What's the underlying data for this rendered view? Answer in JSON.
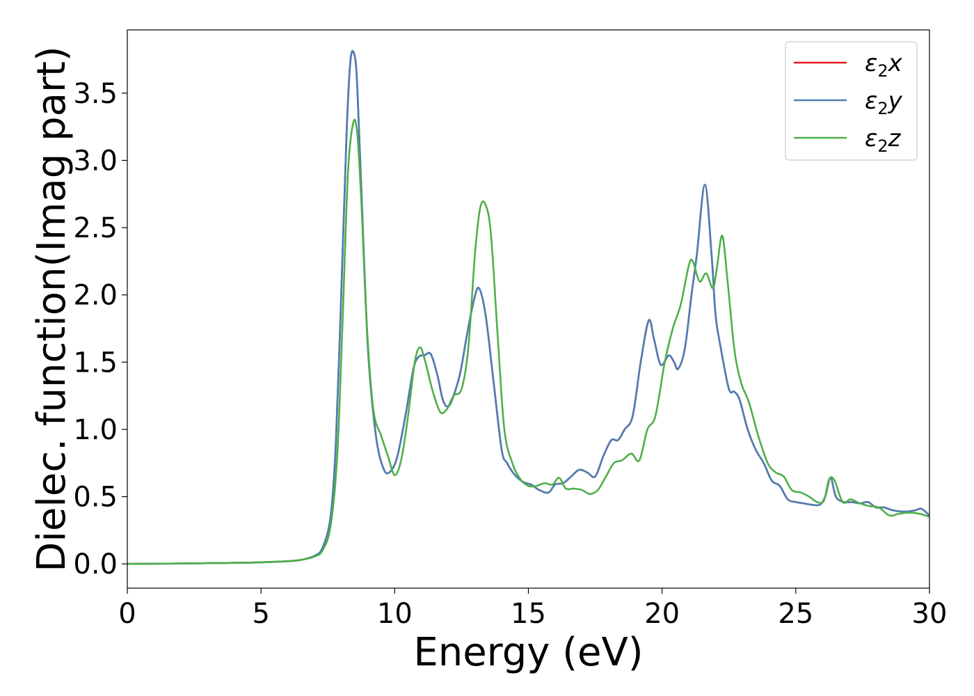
{
  "chart_data": {
    "type": "line",
    "title": "",
    "xlabel": "Energy (eV)",
    "ylabel": "Dielec. function(Imag part)",
    "xlim": [
      0,
      30
    ],
    "ylim": [
      -0.18,
      3.97
    ],
    "xticks": [
      0,
      5,
      10,
      15,
      20,
      25,
      30
    ],
    "xtick_labels": [
      "0",
      "5",
      "10",
      "15",
      "20",
      "25",
      "30"
    ],
    "yticks": [
      0.0,
      0.5,
      1.0,
      1.5,
      2.0,
      2.5,
      3.0,
      3.5
    ],
    "ytick_labels": [
      "0.0",
      "0.5",
      "1.0",
      "1.5",
      "2.0",
      "2.5",
      "3.0",
      "3.5"
    ],
    "grid": false,
    "legend_position": "top-right",
    "series": [
      {
        "name": "ε2x",
        "legend_symbol": "ε",
        "legend_sub": "2",
        "legend_var": "x",
        "color": "#e41a1c",
        "x": [
          0,
          2,
          4,
          5,
          6,
          6.5,
          7,
          7.3,
          7.6,
          7.8,
          8.0,
          8.2,
          8.35,
          8.5,
          8.6,
          8.75,
          9.0,
          9.3,
          9.6,
          9.85,
          10.1,
          10.4,
          10.7,
          10.9,
          11.1,
          11.35,
          11.6,
          11.8,
          12.0,
          12.2,
          12.45,
          12.7,
          12.95,
          13.15,
          13.4,
          13.7,
          14.0,
          14.2,
          14.5,
          14.8,
          15.1,
          15.4,
          15.75,
          16.0,
          16.3,
          16.6,
          16.9,
          17.2,
          17.5,
          17.8,
          18.1,
          18.35,
          18.6,
          18.9,
          19.2,
          19.5,
          19.7,
          19.95,
          20.25,
          20.45,
          20.6,
          20.85,
          21.1,
          21.3,
          21.6,
          21.85,
          22.0,
          22.2,
          22.5,
          22.7,
          22.9,
          23.2,
          23.5,
          23.8,
          24.1,
          24.4,
          24.7,
          25.0,
          25.3,
          25.6,
          25.9,
          26.1,
          26.3,
          26.5,
          26.8,
          27.1,
          27.4,
          27.7,
          28.0,
          28.3,
          28.6,
          28.9,
          29.2,
          29.5,
          29.7,
          30.0
        ],
        "y": [
          0,
          0.003,
          0.008,
          0.012,
          0.02,
          0.03,
          0.06,
          0.12,
          0.35,
          0.9,
          2.0,
          3.2,
          3.75,
          3.78,
          3.55,
          2.8,
          1.6,
          0.95,
          0.7,
          0.69,
          0.8,
          1.1,
          1.45,
          1.54,
          1.55,
          1.56,
          1.4,
          1.22,
          1.17,
          1.25,
          1.42,
          1.7,
          1.95,
          2.05,
          1.85,
          1.35,
          0.85,
          0.75,
          0.66,
          0.61,
          0.59,
          0.55,
          0.53,
          0.59,
          0.6,
          0.65,
          0.7,
          0.68,
          0.65,
          0.8,
          0.92,
          0.92,
          1.0,
          1.1,
          1.5,
          1.81,
          1.67,
          1.48,
          1.55,
          1.5,
          1.45,
          1.6,
          2.0,
          2.3,
          2.82,
          2.3,
          1.85,
          1.6,
          1.3,
          1.28,
          1.22,
          1.0,
          0.85,
          0.75,
          0.62,
          0.58,
          0.48,
          0.46,
          0.45,
          0.44,
          0.44,
          0.5,
          0.64,
          0.5,
          0.46,
          0.46,
          0.45,
          0.46,
          0.42,
          0.42,
          0.4,
          0.39,
          0.39,
          0.4,
          0.41,
          0.36
        ]
      },
      {
        "name": "ε2y",
        "legend_symbol": "ε",
        "legend_sub": "2",
        "legend_var": "y",
        "color": "#4a7fb5",
        "x": [
          0,
          2,
          4,
          5,
          6,
          6.5,
          7,
          7.3,
          7.6,
          7.8,
          8.0,
          8.2,
          8.35,
          8.5,
          8.6,
          8.75,
          9.0,
          9.3,
          9.6,
          9.85,
          10.1,
          10.4,
          10.7,
          10.9,
          11.1,
          11.35,
          11.6,
          11.8,
          12.0,
          12.2,
          12.45,
          12.7,
          12.95,
          13.15,
          13.4,
          13.7,
          14.0,
          14.2,
          14.5,
          14.8,
          15.1,
          15.4,
          15.75,
          16.0,
          16.3,
          16.6,
          16.9,
          17.2,
          17.5,
          17.8,
          18.1,
          18.35,
          18.6,
          18.9,
          19.2,
          19.5,
          19.7,
          19.95,
          20.25,
          20.45,
          20.6,
          20.85,
          21.1,
          21.3,
          21.6,
          21.85,
          22.0,
          22.2,
          22.5,
          22.7,
          22.9,
          23.2,
          23.5,
          23.8,
          24.1,
          24.4,
          24.7,
          25.0,
          25.3,
          25.6,
          25.9,
          26.1,
          26.3,
          26.5,
          26.8,
          27.1,
          27.4,
          27.7,
          28.0,
          28.3,
          28.6,
          28.9,
          29.2,
          29.5,
          29.7,
          30.0
        ],
        "y": [
          0,
          0.003,
          0.008,
          0.012,
          0.02,
          0.03,
          0.06,
          0.12,
          0.35,
          0.9,
          2.0,
          3.2,
          3.75,
          3.78,
          3.55,
          2.8,
          1.6,
          0.95,
          0.7,
          0.69,
          0.8,
          1.1,
          1.45,
          1.54,
          1.55,
          1.56,
          1.4,
          1.22,
          1.17,
          1.25,
          1.42,
          1.7,
          1.95,
          2.05,
          1.85,
          1.35,
          0.85,
          0.75,
          0.66,
          0.61,
          0.59,
          0.55,
          0.53,
          0.59,
          0.6,
          0.65,
          0.7,
          0.68,
          0.65,
          0.8,
          0.92,
          0.92,
          1.0,
          1.1,
          1.5,
          1.81,
          1.67,
          1.48,
          1.55,
          1.5,
          1.45,
          1.6,
          2.0,
          2.3,
          2.82,
          2.3,
          1.85,
          1.6,
          1.3,
          1.28,
          1.22,
          1.0,
          0.85,
          0.75,
          0.62,
          0.58,
          0.48,
          0.46,
          0.45,
          0.44,
          0.44,
          0.5,
          0.64,
          0.5,
          0.46,
          0.46,
          0.45,
          0.46,
          0.42,
          0.42,
          0.4,
          0.39,
          0.39,
          0.4,
          0.41,
          0.36
        ]
      },
      {
        "name": "ε2z",
        "legend_symbol": "ε",
        "legend_sub": "2",
        "legend_var": "z",
        "color": "#4daf4a",
        "x": [
          0,
          2,
          4,
          5,
          6,
          6.5,
          7,
          7.3,
          7.6,
          7.85,
          8.05,
          8.25,
          8.45,
          8.6,
          8.75,
          8.95,
          9.2,
          9.5,
          9.75,
          10.0,
          10.25,
          10.5,
          10.75,
          10.95,
          11.15,
          11.4,
          11.7,
          11.95,
          12.2,
          12.5,
          12.75,
          13.0,
          13.2,
          13.4,
          13.6,
          13.85,
          14.1,
          14.4,
          14.7,
          15.0,
          15.3,
          15.6,
          15.9,
          16.15,
          16.4,
          16.7,
          17.0,
          17.3,
          17.6,
          17.9,
          18.2,
          18.5,
          18.85,
          19.15,
          19.45,
          19.75,
          20.1,
          20.4,
          20.7,
          21.0,
          21.15,
          21.4,
          21.65,
          21.9,
          22.05,
          22.25,
          22.45,
          22.7,
          22.95,
          23.25,
          23.6,
          23.95,
          24.25,
          24.55,
          24.85,
          25.2,
          25.5,
          25.8,
          26.05,
          26.25,
          26.45,
          26.75,
          27.05,
          27.4,
          27.75,
          28.1,
          28.5,
          28.8,
          29.1,
          29.4,
          29.7,
          30.0
        ],
        "y": [
          0,
          0.003,
          0.008,
          0.012,
          0.02,
          0.03,
          0.055,
          0.1,
          0.28,
          0.8,
          1.8,
          2.9,
          3.28,
          3.2,
          2.7,
          1.8,
          1.15,
          0.95,
          0.8,
          0.66,
          0.78,
          1.1,
          1.5,
          1.61,
          1.5,
          1.3,
          1.13,
          1.15,
          1.25,
          1.3,
          1.6,
          2.3,
          2.65,
          2.67,
          2.45,
          1.7,
          1.0,
          0.75,
          0.63,
          0.58,
          0.58,
          0.6,
          0.59,
          0.64,
          0.56,
          0.56,
          0.55,
          0.52,
          0.55,
          0.65,
          0.75,
          0.77,
          0.82,
          0.77,
          1.0,
          1.1,
          1.5,
          1.75,
          1.93,
          2.22,
          2.25,
          2.1,
          2.16,
          2.05,
          2.2,
          2.44,
          2.1,
          1.6,
          1.35,
          1.2,
          0.95,
          0.75,
          0.68,
          0.65,
          0.55,
          0.53,
          0.5,
          0.46,
          0.47,
          0.63,
          0.62,
          0.46,
          0.48,
          0.45,
          0.43,
          0.42,
          0.36,
          0.37,
          0.38,
          0.38,
          0.37,
          0.35
        ]
      }
    ]
  }
}
